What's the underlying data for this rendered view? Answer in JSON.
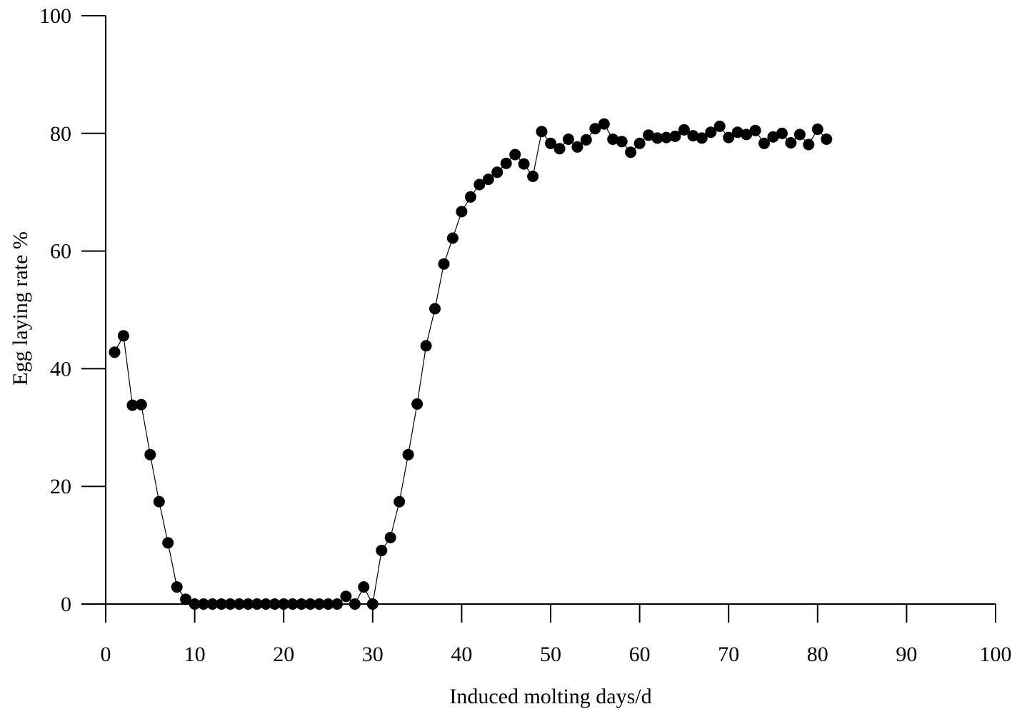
{
  "chart_data": {
    "type": "line",
    "title": "",
    "xlabel": "Induced molting days/d",
    "ylabel": "Egg laying rate %",
    "xlim": [
      0,
      100
    ],
    "ylim": [
      0,
      100
    ],
    "xticks": [
      0,
      10,
      20,
      30,
      40,
      50,
      60,
      70,
      80,
      90,
      100
    ],
    "yticks": [
      0,
      20,
      40,
      60,
      80,
      100
    ],
    "grid": false,
    "legend": "none",
    "marker": "filled-circle",
    "color": "#000000",
    "series": [
      {
        "x": [
          1,
          2,
          3,
          4,
          5,
          6,
          7,
          8,
          9,
          10,
          11,
          12,
          13,
          14,
          15,
          16,
          17,
          18,
          19,
          20,
          21,
          22,
          23,
          24,
          25,
          26,
          27,
          28,
          29,
          30,
          31,
          32,
          33,
          34,
          35,
          36,
          37,
          38,
          39,
          40,
          41,
          42,
          43,
          44,
          45,
          46,
          47,
          48,
          49,
          50,
          51,
          52,
          53,
          54,
          55,
          56,
          57,
          58,
          59,
          60,
          61,
          62,
          63,
          64,
          65,
          66,
          67,
          68,
          69,
          70,
          71,
          72,
          73,
          74,
          75,
          76,
          77,
          78,
          79,
          80,
          81
        ],
        "y": [
          42.8,
          45.6,
          33.8,
          33.9,
          25.4,
          17.4,
          10.4,
          2.9,
          0.8,
          0,
          0,
          0,
          0,
          0,
          0,
          0,
          0,
          0,
          0,
          0,
          0,
          0,
          0,
          0,
          0,
          0,
          1.3,
          0,
          2.9,
          0,
          9.1,
          11.3,
          17.4,
          25.4,
          34,
          43.9,
          50.2,
          57.8,
          62.2,
          66.7,
          69.2,
          71.3,
          72.2,
          73.4,
          74.9,
          76.4,
          74.8,
          72.7,
          80.3,
          78.3,
          77.4,
          79,
          77.7,
          78.9,
          80.8,
          81.6,
          79,
          78.6,
          76.8,
          78.3,
          79.7,
          79.2,
          79.3,
          79.5,
          80.6,
          79.6,
          79.2,
          80.2,
          81.2,
          79.3,
          80.2,
          79.8,
          80.5,
          78.3,
          79.4,
          80,
          78.4,
          79.8,
          78.1,
          80.7,
          79
        ]
      }
    ]
  }
}
